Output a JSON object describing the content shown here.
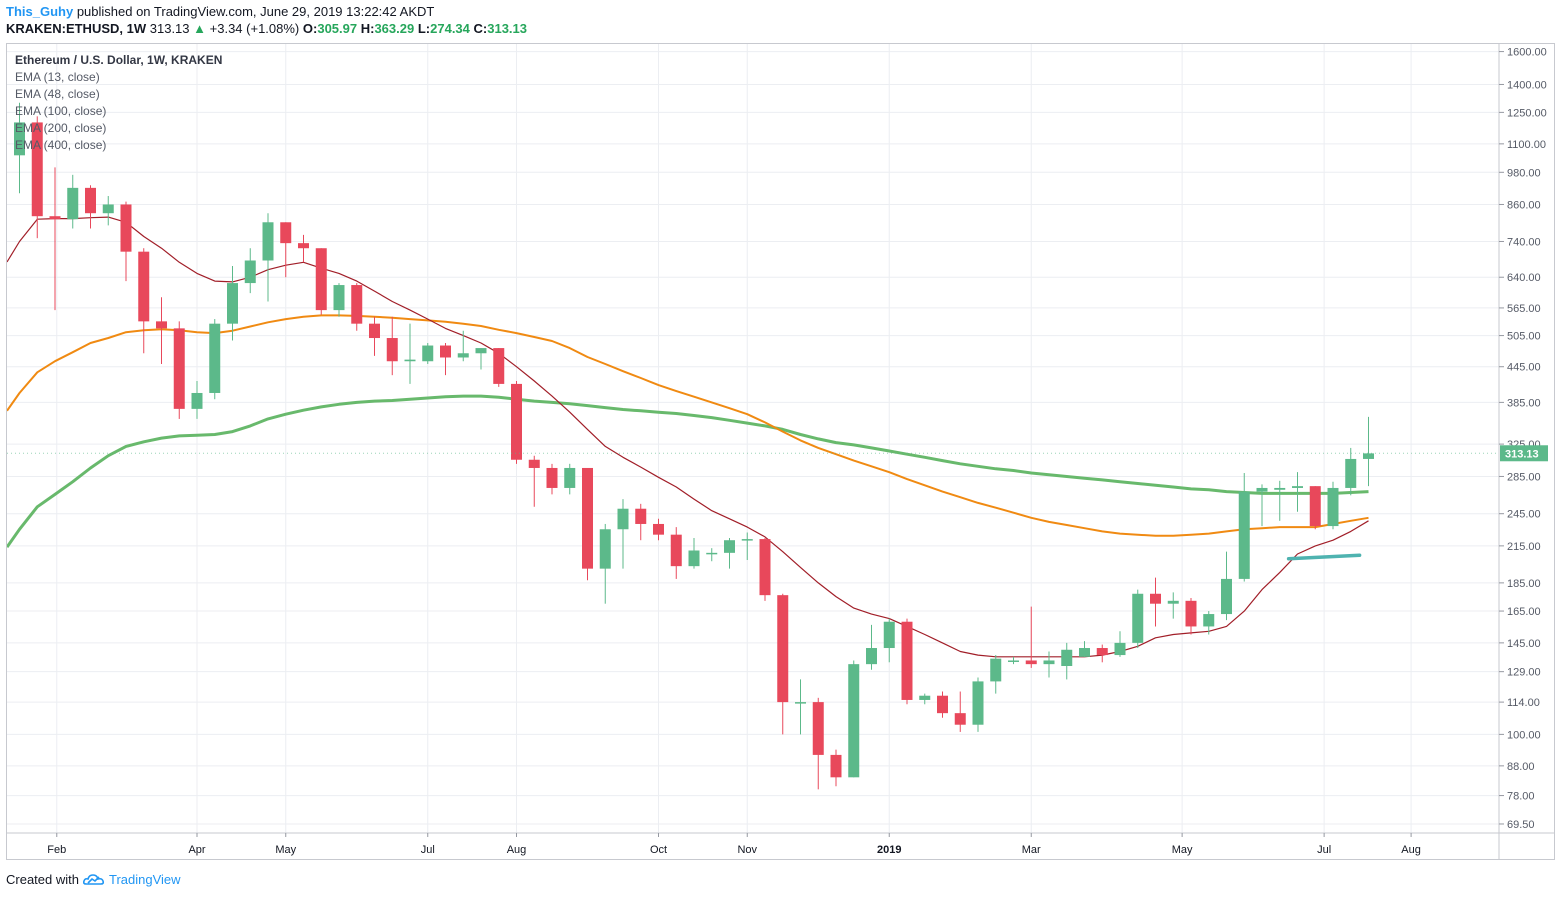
{
  "header": {
    "author": "This_Guhy",
    "published_text": "published on TradingView.com, June 29, 2019 13:22:42 AKDT",
    "symbol": "KRAKEN:ETHUSD, 1W",
    "last": "313.13",
    "change_arrow": "▲",
    "change": "+3.34 (+1.08%)",
    "open_label": "O:",
    "open": "305.97",
    "high_label": "H:",
    "high": "363.29",
    "low_label": "L:",
    "low": "274.34",
    "close_label": "C:",
    "close": "313.13"
  },
  "legend": {
    "title": "Ethereum / U.S. Dollar, 1W, KRAKEN",
    "items": [
      "EMA (13, close)",
      "EMA (48, close)",
      "EMA (100, close)",
      "EMA (200, close)",
      "EMA (400, close)"
    ]
  },
  "footer": {
    "created_with": "Created with",
    "brand": "TradingView",
    "logo_icon": "tradingview-cloud-icon"
  },
  "colors": {
    "up": "#5cb98a",
    "down": "#e8485b",
    "ema13": "#a11e28",
    "ema48": "#f08a12",
    "ema100": "#68b96c",
    "ema200": "#4fb3b0",
    "grid": "#eceef2",
    "axis_text": "#555a66"
  },
  "chart_data": {
    "type": "candlestick",
    "y_scale": "log",
    "ylim": [
      67,
      1650
    ],
    "y_ticks": [
      69.5,
      78,
      88,
      100,
      114,
      129,
      145,
      165,
      185,
      215,
      245,
      285,
      325,
      385,
      445,
      505,
      565,
      640,
      740,
      860,
      980,
      1100,
      1250,
      1400,
      1600
    ],
    "y_tick_labels": [
      "69.50",
      "78.00",
      "88.00",
      "100.00",
      "114.00",
      "129.00",
      "145.00",
      "165.00",
      "185.00",
      "215.00",
      "245.00",
      "285.00",
      "325.00",
      "385.00",
      "445.00",
      "505.00",
      "565.00",
      "640.00",
      "740.00",
      "860.00",
      "980.00",
      "1100.00",
      "1250.00",
      "1400.00",
      "1600.00"
    ],
    "x_labels": [
      "Feb",
      "Apr",
      "May",
      "Jul",
      "Aug",
      "Oct",
      "Nov",
      "2019",
      "Mar",
      "May",
      "Jul",
      "Aug"
    ],
    "x_label_week_index": [
      2.1,
      10.0,
      15.0,
      23.0,
      28.0,
      36.0,
      41.0,
      49.0,
      57.0,
      65.5,
      73.5,
      78.4
    ],
    "x_label_bold": [
      false,
      false,
      false,
      false,
      false,
      false,
      false,
      true,
      false,
      false,
      false,
      false
    ],
    "current_price": 313.13,
    "current_price_label": "313.13",
    "candles": [
      {
        "o": 1050,
        "h": 1300,
        "l": 900,
        "c": 1200
      },
      {
        "o": 1200,
        "h": 1230,
        "l": 750,
        "c": 820
      },
      {
        "o": 820,
        "h": 1000,
        "l": 560,
        "c": 810
      },
      {
        "o": 810,
        "h": 970,
        "l": 780,
        "c": 920
      },
      {
        "o": 920,
        "h": 930,
        "l": 780,
        "c": 830
      },
      {
        "o": 830,
        "h": 890,
        "l": 790,
        "c": 860
      },
      {
        "o": 860,
        "h": 870,
        "l": 630,
        "c": 710
      },
      {
        "o": 710,
        "h": 720,
        "l": 470,
        "c": 535
      },
      {
        "o": 535,
        "h": 590,
        "l": 450,
        "c": 520
      },
      {
        "o": 520,
        "h": 535,
        "l": 360,
        "c": 375
      },
      {
        "o": 375,
        "h": 420,
        "l": 360,
        "c": 400
      },
      {
        "o": 400,
        "h": 540,
        "l": 390,
        "c": 530
      },
      {
        "o": 530,
        "h": 670,
        "l": 495,
        "c": 625
      },
      {
        "o": 625,
        "h": 720,
        "l": 600,
        "c": 685
      },
      {
        "o": 685,
        "h": 830,
        "l": 580,
        "c": 800
      },
      {
        "o": 800,
        "h": 800,
        "l": 640,
        "c": 735
      },
      {
        "o": 735,
        "h": 760,
        "l": 680,
        "c": 720
      },
      {
        "o": 720,
        "h": 720,
        "l": 550,
        "c": 560
      },
      {
        "o": 560,
        "h": 625,
        "l": 545,
        "c": 620
      },
      {
        "o": 620,
        "h": 625,
        "l": 515,
        "c": 530
      },
      {
        "o": 530,
        "h": 545,
        "l": 465,
        "c": 500
      },
      {
        "o": 500,
        "h": 545,
        "l": 430,
        "c": 455
      },
      {
        "o": 455,
        "h": 530,
        "l": 415,
        "c": 458
      },
      {
        "o": 455,
        "h": 490,
        "l": 450,
        "c": 485
      },
      {
        "o": 485,
        "h": 490,
        "l": 430,
        "c": 462
      },
      {
        "o": 462,
        "h": 515,
        "l": 455,
        "c": 470
      },
      {
        "o": 470,
        "h": 480,
        "l": 440,
        "c": 480
      },
      {
        "o": 480,
        "h": 480,
        "l": 410,
        "c": 415
      },
      {
        "o": 415,
        "h": 420,
        "l": 300,
        "c": 305
      },
      {
        "o": 305,
        "h": 310,
        "l": 252,
        "c": 295
      },
      {
        "o": 295,
        "h": 300,
        "l": 265,
        "c": 272
      },
      {
        "o": 272,
        "h": 300,
        "l": 265,
        "c": 295
      },
      {
        "o": 295,
        "h": 295,
        "l": 187,
        "c": 196
      },
      {
        "o": 196,
        "h": 235,
        "l": 170,
        "c": 230
      },
      {
        "o": 230,
        "h": 260,
        "l": 196,
        "c": 250
      },
      {
        "o": 250,
        "h": 255,
        "l": 220,
        "c": 235
      },
      {
        "o": 235,
        "h": 240,
        "l": 220,
        "c": 225
      },
      {
        "o": 225,
        "h": 232,
        "l": 188,
        "c": 198
      },
      {
        "o": 198,
        "h": 222,
        "l": 196,
        "c": 211
      },
      {
        "o": 209,
        "h": 213,
        "l": 202,
        "c": 209
      },
      {
        "o": 209,
        "h": 222,
        "l": 196,
        "c": 220
      },
      {
        "o": 220,
        "h": 227,
        "l": 203,
        "c": 221
      },
      {
        "o": 221,
        "h": 222,
        "l": 172,
        "c": 176
      },
      {
        "o": 176,
        "h": 177,
        "l": 100,
        "c": 114
      },
      {
        "o": 114,
        "h": 125,
        "l": 100,
        "c": 114
      },
      {
        "o": 114,
        "h": 116,
        "l": 80,
        "c": 92
      },
      {
        "o": 92,
        "h": 94,
        "l": 81,
        "c": 84
      },
      {
        "o": 84,
        "h": 135,
        "l": 84,
        "c": 133
      },
      {
        "o": 133,
        "h": 156,
        "l": 130,
        "c": 142
      },
      {
        "o": 142,
        "h": 160,
        "l": 134,
        "c": 158
      },
      {
        "o": 158,
        "h": 160,
        "l": 113,
        "c": 115
      },
      {
        "o": 115,
        "h": 118,
        "l": 113,
        "c": 117
      },
      {
        "o": 117,
        "h": 119,
        "l": 107,
        "c": 109
      },
      {
        "o": 109,
        "h": 119,
        "l": 101,
        "c": 104
      },
      {
        "o": 104,
        "h": 126,
        "l": 101,
        "c": 124
      },
      {
        "o": 124,
        "h": 138,
        "l": 118,
        "c": 136
      },
      {
        "o": 135,
        "h": 137,
        "l": 133,
        "c": 135
      },
      {
        "o": 135,
        "h": 168,
        "l": 131,
        "c": 133
      },
      {
        "o": 133,
        "h": 140,
        "l": 126,
        "c": 135
      },
      {
        "o": 132,
        "h": 145,
        "l": 125,
        "c": 141
      },
      {
        "o": 137,
        "h": 146,
        "l": 137,
        "c": 142
      },
      {
        "o": 142,
        "h": 144,
        "l": 134,
        "c": 138
      },
      {
        "o": 138,
        "h": 152,
        "l": 137,
        "c": 145
      },
      {
        "o": 145,
        "h": 180,
        "l": 142,
        "c": 177
      },
      {
        "o": 177,
        "h": 189,
        "l": 155,
        "c": 170
      },
      {
        "o": 170,
        "h": 178,
        "l": 160,
        "c": 172
      },
      {
        "o": 172,
        "h": 174,
        "l": 150,
        "c": 155
      },
      {
        "o": 155,
        "h": 165,
        "l": 150,
        "c": 163
      },
      {
        "o": 163,
        "h": 210,
        "l": 159,
        "c": 188
      },
      {
        "o": 188,
        "h": 289,
        "l": 186,
        "c": 268
      },
      {
        "o": 268,
        "h": 276,
        "l": 233,
        "c": 272
      },
      {
        "o": 270,
        "h": 280,
        "l": 238,
        "c": 272
      },
      {
        "o": 272,
        "h": 290,
        "l": 247,
        "c": 274
      },
      {
        "o": 274,
        "h": 274,
        "l": 230,
        "c": 233
      },
      {
        "o": 233,
        "h": 279,
        "l": 230,
        "c": 272
      },
      {
        "o": 272,
        "h": 320,
        "l": 264,
        "c": 306
      },
      {
        "o": 306,
        "h": 363,
        "l": 274,
        "c": 313
      }
    ],
    "series": [
      {
        "name": "EMA (13, close)",
        "values": [
          740,
          810,
          812,
          812,
          815,
          817,
          800,
          755,
          720,
          680,
          650,
          630,
          628,
          640,
          660,
          672,
          680,
          664,
          650,
          630,
          605,
          580,
          560,
          540,
          520,
          505,
          490,
          470,
          445,
          420,
          395,
          370,
          345,
          322,
          308,
          296,
          284,
          273,
          260,
          248,
          240,
          232,
          223,
          210,
          197,
          185,
          175,
          167,
          163,
          160,
          155,
          150,
          145,
          140,
          138,
          137,
          137,
          137,
          137,
          137,
          137,
          138,
          140,
          143,
          148,
          150,
          151,
          152,
          155,
          165,
          180,
          193,
          208,
          215,
          220,
          228,
          238
        ]
      },
      {
        "name": "EMA (48, close)",
        "values": [
          400,
          435,
          455,
          472,
          490,
          500,
          512,
          516,
          518,
          516,
          512,
          510,
          515,
          524,
          533,
          540,
          545,
          548,
          548,
          547,
          545,
          543,
          540,
          537,
          534,
          530,
          525,
          517,
          510,
          502,
          494,
          480,
          463,
          450,
          437,
          425,
          413,
          403,
          394,
          385,
          376,
          367,
          355,
          342,
          330,
          320,
          312,
          304,
          297,
          290,
          282,
          275,
          268,
          262,
          256,
          251,
          246,
          241,
          237,
          234,
          231,
          228,
          226,
          225,
          224,
          224,
          225,
          226,
          228,
          230,
          231,
          232,
          232,
          232,
          235,
          238,
          241
        ]
      },
      {
        "name": "EMA (100, close)",
        "values": [
          230,
          252,
          265,
          279,
          295,
          310,
          322,
          328,
          333,
          336,
          337,
          338,
          342,
          350,
          360,
          367,
          373,
          378,
          382,
          385,
          387,
          388,
          390,
          392,
          394,
          395,
          395,
          393,
          390,
          387,
          385,
          383,
          380,
          377,
          374,
          372,
          370,
          368,
          365,
          362,
          358,
          354,
          350,
          345,
          338,
          332,
          327,
          324,
          320,
          316,
          312,
          308,
          304,
          300,
          297,
          294,
          292,
          289,
          287,
          285,
          283,
          281,
          279,
          277,
          275,
          273,
          271,
          270,
          268,
          267,
          266,
          266,
          266,
          266,
          266,
          267,
          268
        ]
      },
      {
        "name": "EMA (200, close)",
        "points": [
          [
            71.5,
            204
          ],
          [
            75.5,
            207
          ]
        ]
      }
    ]
  }
}
